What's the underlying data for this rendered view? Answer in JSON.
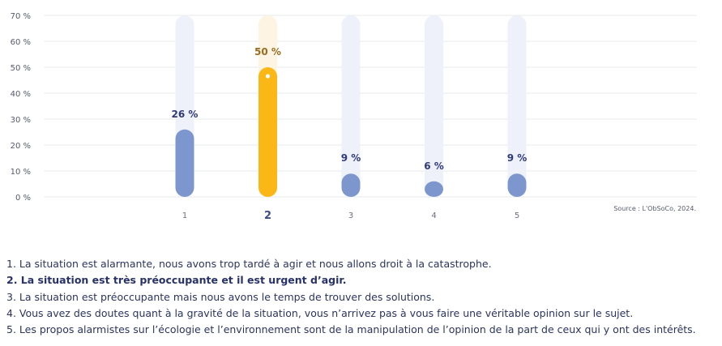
{
  "chart_data": {
    "type": "bar",
    "categories": [
      "1",
      "2",
      "3",
      "4",
      "5"
    ],
    "values": [
      26,
      50,
      9,
      6,
      9
    ],
    "value_labels": [
      "26 %",
      "50 %",
      "9 %",
      "6 %",
      "9 %"
    ],
    "highlighted_index": 1,
    "ylim": [
      0,
      70
    ],
    "yticks": [
      0,
      10,
      20,
      30,
      40,
      50,
      60,
      70
    ],
    "ytick_labels": [
      "0 %",
      "10 %",
      "20 %",
      "30 %",
      "40 %",
      "50 %",
      "60 %",
      "70 %"
    ],
    "grid": true,
    "source": "Source : L'ObSoCo, 2024.",
    "colors": {
      "bar": "#7e96ce",
      "bar_track": "#eef1fa",
      "highlight": "#fbb716",
      "highlight_track": "#fdf4e3",
      "grid": "#e6e8ee"
    }
  },
  "legend": [
    "1. La situation est alarmante, nous avons trop tardé à agir et nous allons droit à la catastrophe.",
    "2. La situation est très préoccupante et il est urgent d’agir.",
    "3. La situation est préoccupante mais nous avons le temps de trouver des solutions.",
    "4. Vous avez des doutes quant à la gravité de la situation, vous n’arrivez pas à vous faire une véritable opinion sur le sujet.",
    "5. Les propos alarmistes sur l’écologie et l’environnement sont de la manipulation de l’opinion de la part de ceux qui y ont des intérêts."
  ]
}
